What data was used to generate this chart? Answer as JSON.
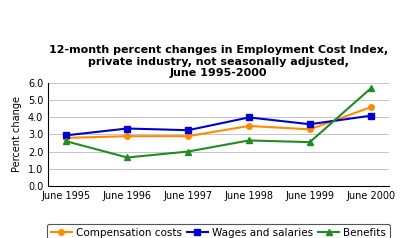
{
  "title": "12-month percent changes in Employment Cost Index,\nprivate industry, not seasonally adjusted,\nJune 1995-2000",
  "xlabel_labels": [
    "June 1995",
    "June 1996",
    "June 1997",
    "June 1998",
    "June 1999",
    "June 2000"
  ],
  "x": [
    0,
    1,
    2,
    3,
    4,
    5
  ],
  "compensation_costs": [
    2.8,
    2.9,
    2.9,
    3.5,
    3.3,
    4.6
  ],
  "wages_and_salaries": [
    2.95,
    3.35,
    3.25,
    4.0,
    3.6,
    4.1
  ],
  "benefits": [
    2.6,
    1.65,
    2.0,
    2.65,
    2.55,
    5.7
  ],
  "comp_color": "#FF8C00",
  "wages_color": "#0000CD",
  "benefits_color": "#228B22",
  "ylim": [
    0.0,
    6.0
  ],
  "yticks": [
    0.0,
    1.0,
    2.0,
    3.0,
    4.0,
    5.0,
    6.0
  ],
  "ylabel": "Percent change",
  "legend_labels": [
    "Compensation costs",
    "Wages and salaries",
    "Benefits"
  ],
  "background_color": "#FFFFFF",
  "plot_bg_color": "#FFFFFF",
  "title_fontsize": 8,
  "axis_fontsize": 7,
  "legend_fontsize": 7.5
}
